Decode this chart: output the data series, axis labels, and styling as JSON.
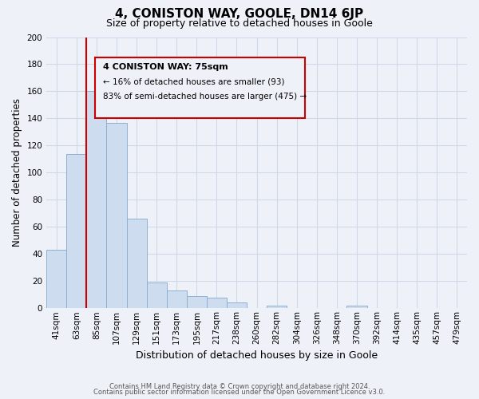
{
  "title": "4, CONISTON WAY, GOOLE, DN14 6JP",
  "subtitle": "Size of property relative to detached houses in Goole",
  "xlabel": "Distribution of detached houses by size in Goole",
  "ylabel": "Number of detached properties",
  "bar_labels": [
    "41sqm",
    "63sqm",
    "85sqm",
    "107sqm",
    "129sqm",
    "151sqm",
    "173sqm",
    "195sqm",
    "217sqm",
    "238sqm",
    "260sqm",
    "282sqm",
    "304sqm",
    "326sqm",
    "348sqm",
    "370sqm",
    "392sqm",
    "414sqm",
    "435sqm",
    "457sqm",
    "479sqm"
  ],
  "bar_values": [
    43,
    114,
    160,
    137,
    66,
    19,
    13,
    9,
    8,
    4,
    0,
    2,
    0,
    0,
    0,
    2,
    0,
    0,
    0,
    0,
    0
  ],
  "bar_color": "#cddcee",
  "bar_edge_color": "#8eb0d0",
  "property_line_color": "#cc0000",
  "property_line_x": 1.5,
  "annotation_title": "4 CONISTON WAY: 75sqm",
  "annotation_line1": "← 16% of detached houses are smaller (93)",
  "annotation_line2": "83% of semi-detached houses are larger (475) →",
  "annotation_box_edge_color": "#cc0000",
  "ylim": [
    0,
    200
  ],
  "yticks": [
    0,
    20,
    40,
    60,
    80,
    100,
    120,
    140,
    160,
    180,
    200
  ],
  "footnote1": "Contains HM Land Registry data © Crown copyright and database right 2024.",
  "footnote2": "Contains public sector information licensed under the Open Government Licence v3.0.",
  "bg_color": "#eef2f8",
  "grid_color": "#d0d8e8",
  "title_fontsize": 11,
  "subtitle_fontsize": 9,
  "ylabel_fontsize": 8.5,
  "xlabel_fontsize": 9,
  "tick_fontsize": 7.5,
  "footnote_fontsize": 6
}
